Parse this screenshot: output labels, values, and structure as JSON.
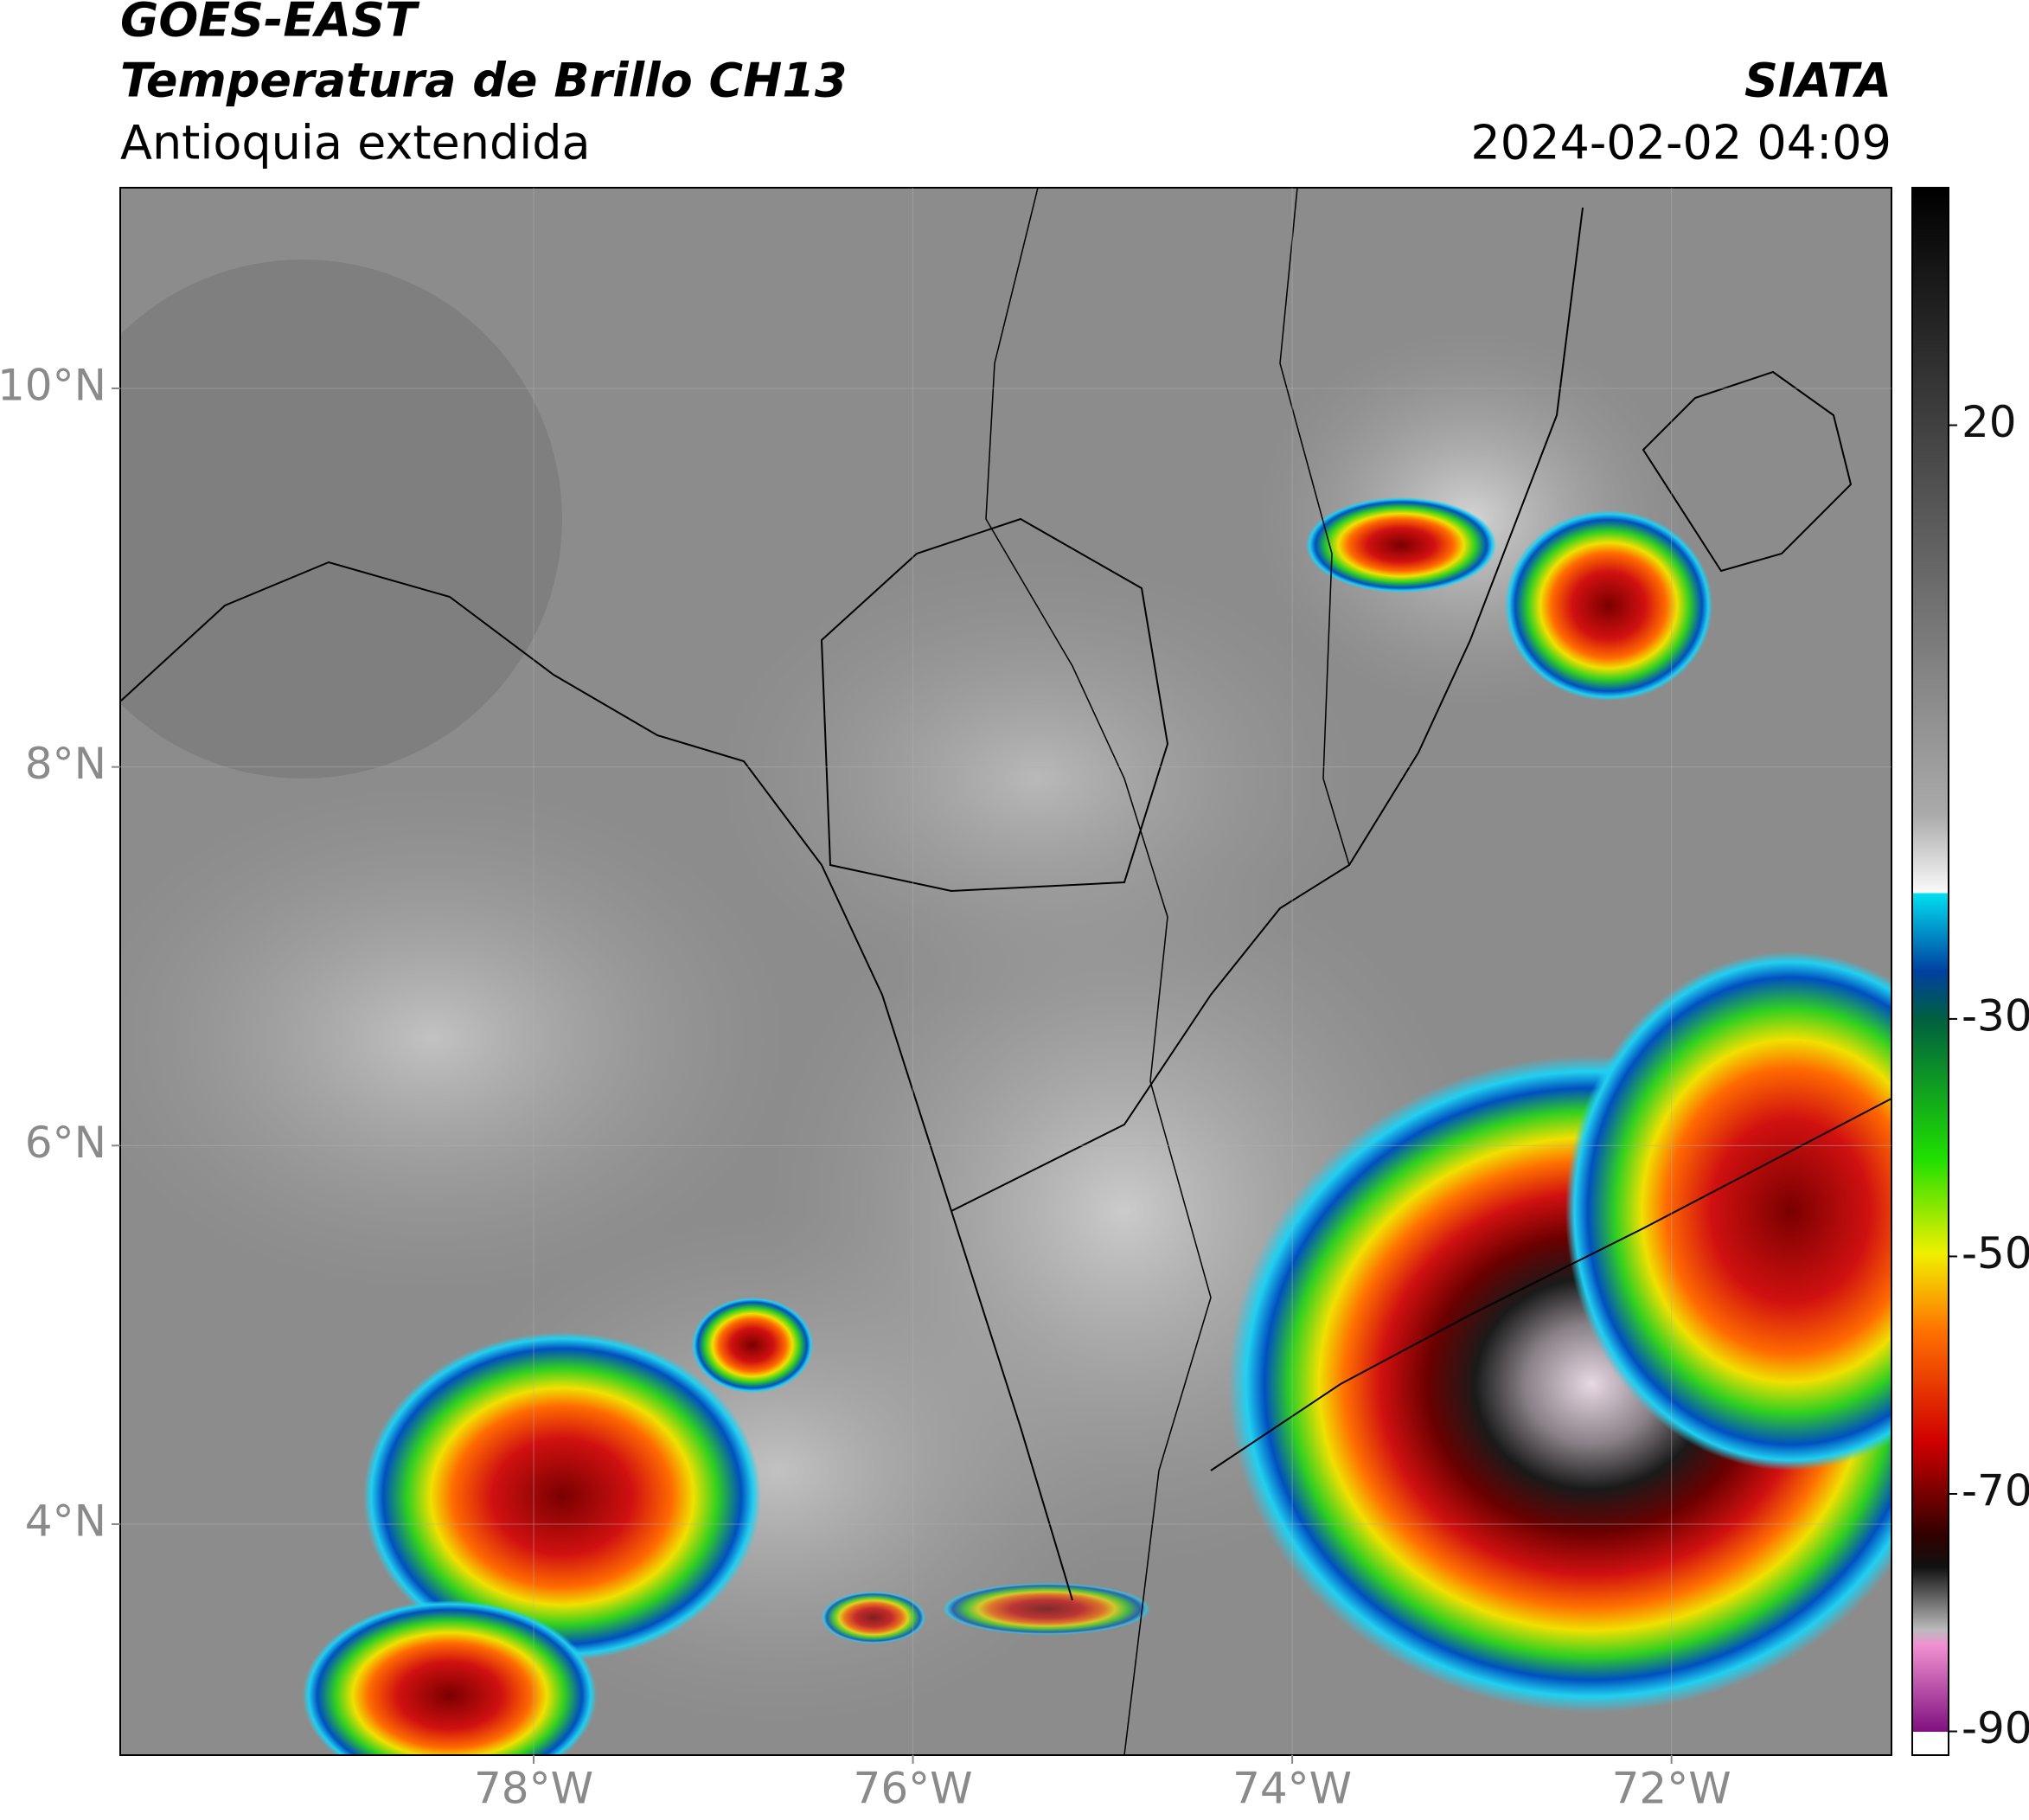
{
  "header": {
    "satellite": "GOES-EAST",
    "product": "Temperatura de Brillo CH13",
    "region": "Antioquia extendida",
    "source": "SIATA",
    "datetime": "2024-02-02 04:09"
  },
  "map": {
    "lonlim": [
      -80.18,
      -70.84
    ],
    "latlim": [
      2.78,
      11.06
    ],
    "lon_ticks": [
      {
        "value": -78,
        "label": "78°W"
      },
      {
        "value": -76,
        "label": "76°W"
      },
      {
        "value": -74,
        "label": "74°W"
      },
      {
        "value": -72,
        "label": "72°W"
      }
    ],
    "lat_ticks": [
      {
        "value": 10,
        "label": "10°N"
      },
      {
        "value": 8,
        "label": "8°N"
      },
      {
        "value": 6,
        "label": "6°N"
      },
      {
        "value": 4,
        "label": "4°N"
      }
    ],
    "grid": true
  },
  "colorbar": {
    "lim": [
      -92,
      40
    ],
    "ticks": [
      20,
      -30,
      -50,
      -70,
      -90
    ]
  }
}
